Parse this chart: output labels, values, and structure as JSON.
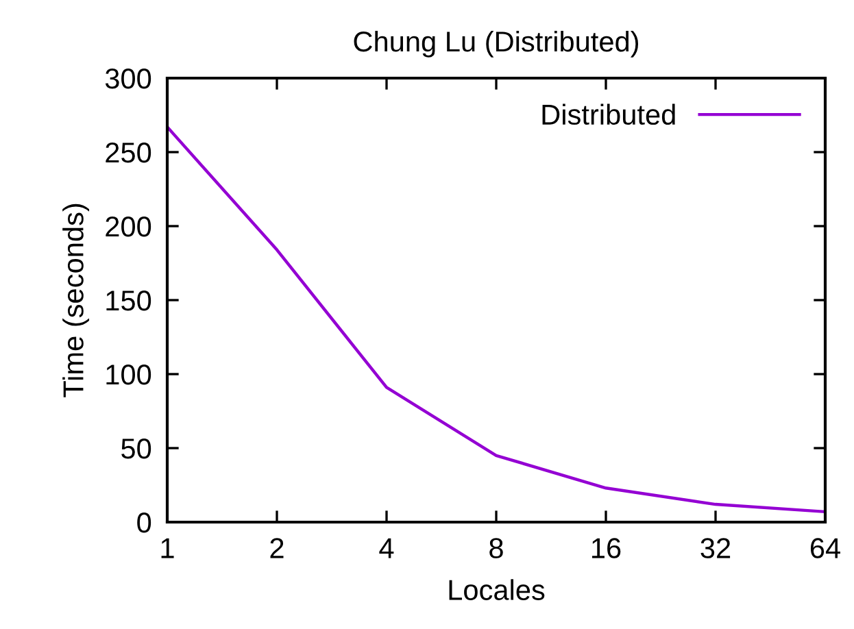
{
  "chart_data": {
    "type": "line",
    "title": "Chung Lu (Distributed)",
    "xlabel": "Locales",
    "ylabel": "Time (seconds)",
    "x": [
      1,
      2,
      4,
      8,
      16,
      32,
      64
    ],
    "series": [
      {
        "name": "Distributed",
        "color": "#9400d3",
        "values": [
          267,
          184,
          91,
          45,
          23,
          12,
          7
        ]
      }
    ],
    "log": "x",
    "xlim": [
      1,
      64
    ],
    "xticks": [
      1,
      2,
      4,
      8,
      16,
      32,
      64
    ],
    "ylim": [
      0,
      300
    ],
    "yticks": [
      0,
      50,
      100,
      150,
      200,
      250,
      300
    ],
    "legend": "top right",
    "grid": false,
    "marker": "none",
    "line_style": "solid"
  }
}
